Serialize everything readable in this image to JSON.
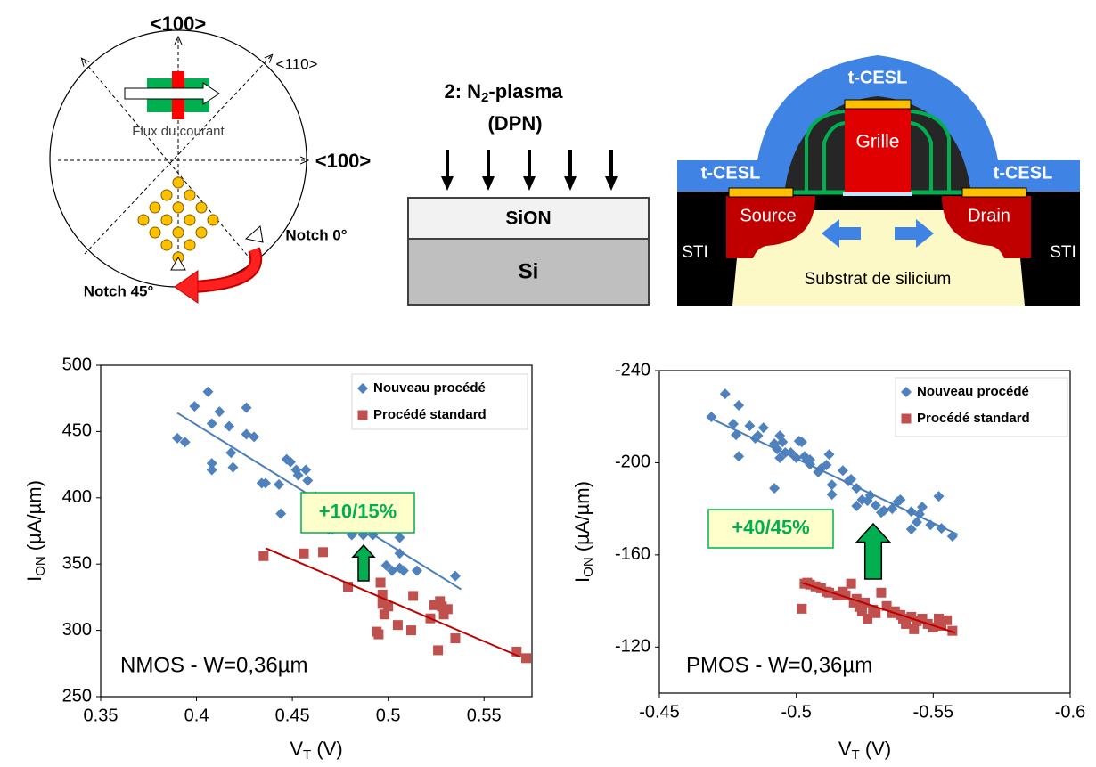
{
  "diagrams": {
    "wafer": {
      "axis_top": "<100>",
      "axis_diag": "<110>",
      "axis_right": "<100>",
      "flow": "Flux du courant",
      "notch_0": "Notch 0°",
      "notch_45": "Notch 45°"
    },
    "plasma": {
      "title_main": "2: N",
      "title_sub": "2",
      "title_rest": "-plasma",
      "title_line2": "(DPN)",
      "layer_top": "SiON",
      "layer_bottom": "Si"
    },
    "transistor": {
      "cesl_top": "t-CESL",
      "cesl_left": "t-CESL",
      "cesl_right": "t-CESL",
      "gate": "Grille",
      "source": "Source",
      "drain": "Drain",
      "sti_left": "STI",
      "sti_right": "STI",
      "substrate": "Substrat de silicium"
    }
  },
  "chart_data": [
    {
      "type": "scatter",
      "xlabel": {
        "main": "V",
        "sub": "T",
        "rest": " (V)"
      },
      "ylabel": {
        "main": "I",
        "sub": "ON",
        "rest": " (µA/µm)"
      },
      "xlim": [
        0.35,
        0.575
      ],
      "xticks": [
        0.35,
        0.4,
        0.45,
        0.5,
        0.55
      ],
      "ylim": [
        250,
        500
      ],
      "yticks": [
        250,
        300,
        350,
        400,
        450,
        500
      ],
      "legend": "upper right",
      "series": [
        {
          "name": "Nouveau procédé",
          "color": "#4f81bd",
          "marker": "diamond",
          "x": [
            0.39,
            0.394,
            0.399,
            0.406,
            0.408,
            0.408,
            0.408,
            0.412,
            0.417,
            0.418,
            0.419,
            0.426,
            0.426,
            0.43,
            0.434,
            0.436,
            0.443,
            0.444,
            0.447,
            0.449,
            0.452,
            0.453,
            0.457,
            0.458,
            0.462,
            0.466,
            0.469,
            0.471,
            0.48,
            0.481,
            0.487,
            0.492,
            0.499,
            0.502,
            0.506,
            0.506,
            0.506,
            0.508,
            0.515,
            0.535
          ],
          "values": [
            445,
            442,
            469,
            480,
            456,
            426,
            421,
            465,
            454,
            434,
            423,
            448,
            468,
            446,
            411,
            411,
            410,
            388,
            429,
            427,
            421,
            417,
            421,
            413,
            401,
            395,
            376,
            376,
            389,
            372,
            372,
            372,
            349,
            345,
            370,
            358,
            347,
            345,
            345,
            341
          ],
          "trend": {
            "x": [
              0.39,
              0.538
            ],
            "values": [
              464,
              331
            ],
            "color": "#4a7ebb"
          }
        },
        {
          "name": "Procédé standard",
          "color": "#c0504d",
          "marker": "square",
          "x": [
            0.435,
            0.456,
            0.466,
            0.479,
            0.494,
            0.495,
            0.496,
            0.497,
            0.497,
            0.498,
            0.5,
            0.505,
            0.512,
            0.513,
            0.522,
            0.524,
            0.526,
            0.527,
            0.528,
            0.529,
            0.531,
            0.535,
            0.567,
            0.572
          ],
          "values": [
            356,
            358,
            359,
            333,
            299,
            297,
            336,
            327,
            320,
            312,
            318,
            304,
            300,
            326,
            309,
            319,
            285,
            322,
            318,
            312,
            316,
            294,
            284,
            279
          ],
          "trend": {
            "x": [
              0.436,
              0.569
            ],
            "values": [
              362,
              280
            ],
            "color": "#c00000"
          }
        }
      ],
      "annotations": [
        "+10/15%",
        "NMOS - W=0,36µm"
      ]
    },
    {
      "type": "scatter",
      "xlabel": {
        "main": "V",
        "sub": "T",
        "rest": " (V)"
      },
      "ylabel": {
        "main": "I",
        "sub": "ON",
        "rest": " (µA/µm)"
      },
      "xlim": [
        -0.45,
        -0.6
      ],
      "xticks": [
        -0.45,
        -0.5,
        -0.55,
        -0.6
      ],
      "ylim": [
        -100,
        -240
      ],
      "yticks": [
        -240,
        -200,
        -160,
        -120
      ],
      "legend": "upper right",
      "series": [
        {
          "name": "Nouveau procédé",
          "color": "#4f81bd",
          "marker": "diamond",
          "x": [
            -0.469,
            -0.474,
            -0.477,
            -0.478,
            -0.479,
            -0.479,
            -0.483,
            -0.485,
            -0.486,
            -0.488,
            -0.492,
            -0.492,
            -0.493,
            -0.494,
            -0.494,
            -0.495,
            -0.496,
            -0.498,
            -0.5,
            -0.501,
            -0.502,
            -0.503,
            -0.504,
            -0.505,
            -0.505,
            -0.508,
            -0.509,
            -0.511,
            -0.512,
            -0.513,
            -0.513,
            -0.517,
            -0.519,
            -0.52,
            -0.522,
            -0.522,
            -0.524,
            -0.526,
            -0.527,
            -0.529,
            -0.531,
            -0.532,
            -0.535,
            -0.537,
            -0.538,
            -0.542,
            -0.542,
            -0.544,
            -0.545,
            -0.546,
            -0.549,
            -0.552,
            -0.553,
            -0.557
          ],
          "values": [
            -219.9,
            -229.9,
            -216.8,
            -212.1,
            -224.9,
            -202.8,
            -216,
            -210.6,
            -211.7,
            -215.2,
            -188.9,
            -208.3,
            -205.9,
            -211.7,
            -202.1,
            -209,
            -204.4,
            -204.4,
            -202.1,
            -209.4,
            -209,
            -202.8,
            -201.3,
            -199.3,
            -201.3,
            -195.9,
            -197.4,
            -199,
            -203.6,
            -190.4,
            -186.2,
            -196.6,
            -192,
            -192.8,
            -181.2,
            -188.9,
            -183.9,
            -183.5,
            -185.8,
            -181.5,
            -178.4,
            -179.2,
            -180,
            -183.1,
            -183.9,
            -178.8,
            -171.1,
            -174.2,
            -177.7,
            -180.8,
            -173,
            -185.4,
            -171.5,
            -168
          ],
          "trend": {
            "x": [
              -0.469,
              -0.559
            ],
            "values": [
              -219.1,
              -168.8
            ],
            "color": "#4a7ebb"
          }
        },
        {
          "name": "Procédé standard",
          "color": "#c0504d",
          "marker": "square",
          "x": [
            -0.502,
            -0.503,
            -0.504,
            -0.505,
            -0.507,
            -0.509,
            -0.511,
            -0.512,
            -0.515,
            -0.517,
            -0.518,
            -0.52,
            -0.521,
            -0.522,
            -0.523,
            -0.524,
            -0.525,
            -0.526,
            -0.528,
            -0.529,
            -0.531,
            -0.533,
            -0.535,
            -0.536,
            -0.538,
            -0.539,
            -0.54,
            -0.542,
            -0.543,
            -0.544,
            -0.546,
            -0.548,
            -0.55,
            -0.552,
            -0.553,
            -0.555,
            -0.557
          ],
          "values": [
            -136.6,
            -147.5,
            -147.9,
            -147.1,
            -146.3,
            -145.5,
            -144,
            -143.6,
            -142.4,
            -144,
            -142.4,
            -147.5,
            -139.3,
            -140.9,
            -137.4,
            -135.5,
            -139.3,
            -132.3,
            -136.2,
            -134.7,
            -143.6,
            -137.8,
            -134.7,
            -135.5,
            -133.9,
            -132.3,
            -130,
            -133.1,
            -127.7,
            -131.2,
            -132.3,
            -130,
            -128.5,
            -132.3,
            -129.2,
            -131.6,
            -127
          ],
          "trend": {
            "x": [
              -0.502,
              -0.558
            ],
            "values": [
              -147.9,
              -126.2
            ],
            "color": "#c00000"
          }
        }
      ],
      "annotations": [
        "+40/45%",
        "PMOS - W=0,36µm"
      ]
    }
  ]
}
